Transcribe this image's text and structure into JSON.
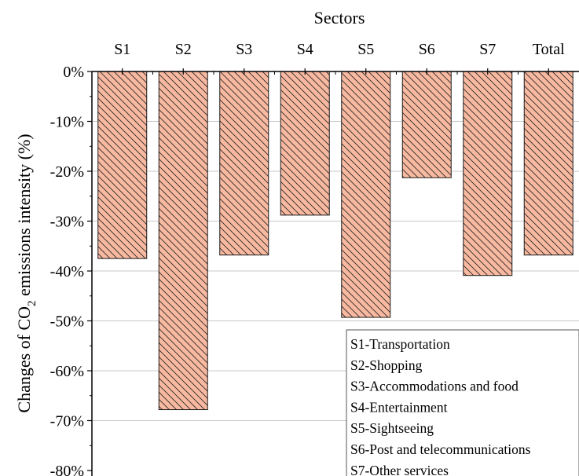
{
  "chart_data": {
    "type": "bar",
    "title": "",
    "xlabel": "Sectors",
    "ylabel": {
      "prefix": "Changes of CO",
      "subscript": "2",
      "suffix": " emissions intensity (%)"
    },
    "categories": [
      "S1",
      "S2",
      "S3",
      "S4",
      "S5",
      "S6",
      "S7",
      "Total"
    ],
    "values": [
      -37.5,
      -67.8,
      -36.8,
      -28.8,
      -49.3,
      -21.3,
      -40.9,
      -36.8
    ],
    "unit": "%",
    "ylim": [
      -80,
      0
    ],
    "yticks": [
      0,
      -10,
      -20,
      -30,
      -40,
      -50,
      -60,
      -70,
      -80
    ],
    "ytick_labels": [
      "0%",
      "-10%",
      "-20%",
      "-30%",
      "-40%",
      "-50%",
      "-60%",
      "-70%",
      "-80%"
    ],
    "x_axis_position": "top",
    "grid": "horizontal",
    "bar_fill": "#f9b9a0",
    "bar_hatch": "diagonal",
    "bar_edge": "#1a1a1a",
    "legend": {
      "placement": "bottom-right",
      "entries": [
        "S1-Transportation",
        "S2-Shopping",
        "S3-Accommodations and food",
        "S4-Entertainment",
        "S5-Sightseeing",
        "S6-Post and telecommunications",
        "S7-Other services"
      ]
    }
  }
}
